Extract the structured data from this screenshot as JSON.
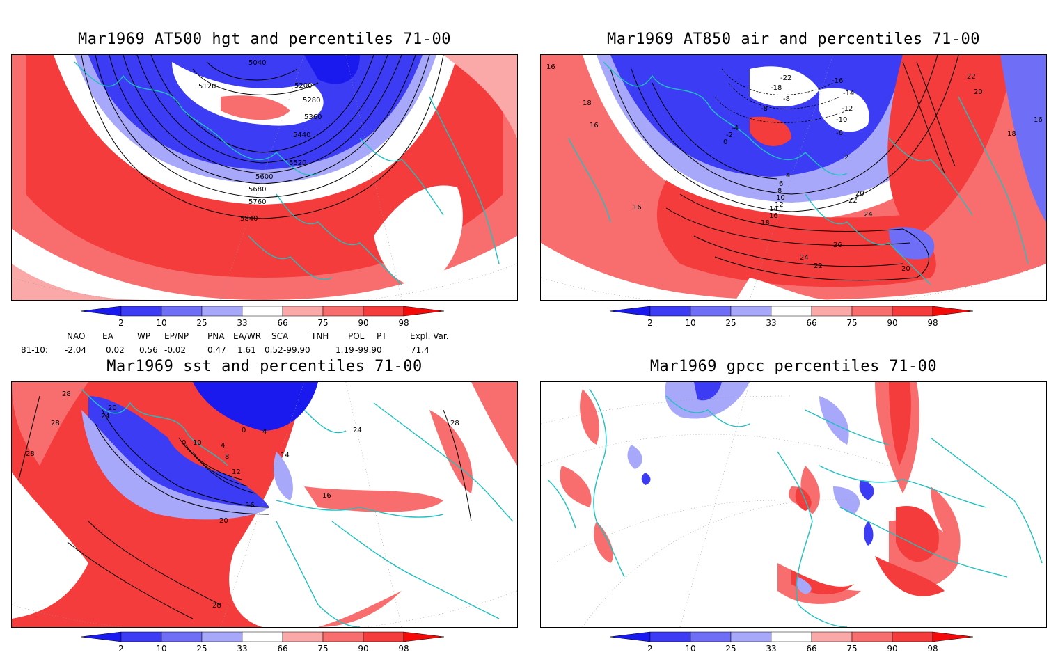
{
  "panels": [
    {
      "title": "Mar1969 AT500 hgt and percentiles 71-00",
      "contour_labels": [
        "5040",
        "5120",
        "5200",
        "5280",
        "5360",
        "5440",
        "5520",
        "5600",
        "5680",
        "5760",
        "5840"
      ]
    },
    {
      "title": "Mar1969 AT850 air and percentiles 71-00",
      "contour_labels": [
        "16",
        "18",
        "16",
        "-16",
        "-14",
        "-12",
        "-10",
        "-8",
        "-6",
        "-4",
        "-2",
        "0",
        "2",
        "4",
        "6",
        "8",
        "10",
        "12",
        "14",
        "16",
        "18",
        "20",
        "22",
        "24",
        "26",
        "22",
        "24",
        "20",
        "22",
        "20",
        "18",
        "16",
        "16",
        "-8",
        "-18",
        "-22"
      ]
    },
    {
      "title": "Mar1969 sst and percentiles 71-00",
      "contour_labels": [
        "28",
        "20",
        "24",
        "28",
        "28",
        "0",
        "10",
        "4",
        "8",
        "12",
        "16",
        "20",
        "28",
        "0",
        "4",
        "14",
        "16",
        "24",
        "28"
      ]
    },
    {
      "title": "Mar1969 gpcc percentiles 71-00",
      "contour_labels": []
    }
  ],
  "colorbar": {
    "ticks": [
      "2",
      "10",
      "25",
      "33",
      "66",
      "75",
      "90",
      "98"
    ],
    "colors": [
      "#1a1aef",
      "#3c3cf5",
      "#6e6ef7",
      "#a8a8fa",
      "#ffffff",
      "#fba8a8",
      "#f86e6e",
      "#f53c3c",
      "#f50a0a"
    ]
  },
  "indices": {
    "header": [
      "NAO",
      "EA",
      "WP",
      "EP/NP",
      "PNA",
      "EA/WR",
      "SCA",
      "TNH",
      "POL",
      "PT",
      "Expl. Var."
    ],
    "row_label": "81-10:",
    "values": [
      "-2.04",
      "0.02",
      "0.56",
      "-0.02",
      "0.47",
      "1.61",
      "0.52",
      "-99.90",
      "1.19",
      "-99.90",
      "71.4"
    ]
  },
  "map_colors": {
    "coast": "#20c0c0",
    "grid": "#999999",
    "contour": "#000000"
  }
}
